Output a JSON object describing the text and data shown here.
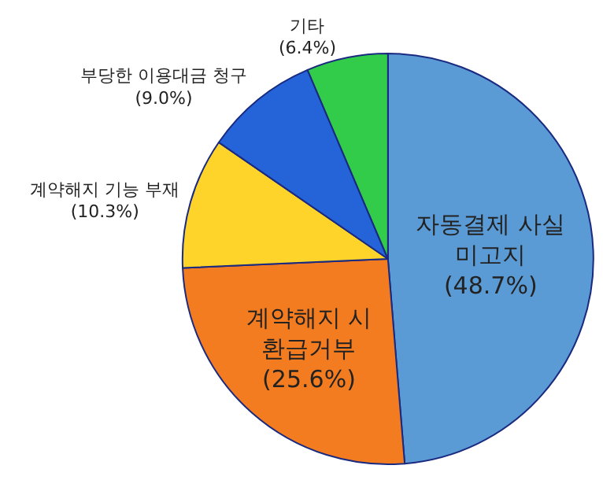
{
  "chart_data": {
    "type": "pie",
    "categories": [
      "자동결제 사실 미고지",
      "계약해지 시 환급거부",
      "계약해지 기능 부재",
      "부당한 이용대금 청구",
      "기타"
    ],
    "values": [
      48.7,
      25.6,
      10.3,
      9.0,
      6.4
    ],
    "value_labels": [
      "(48.7%)",
      "(25.6%)",
      "(10.3%)",
      "(9.0%)",
      "(6.4%)"
    ],
    "colors": [
      "#5b9bd5",
      "#f47c20",
      "#ffd42a",
      "#2563d9",
      "#33cc4a"
    ],
    "legend": false
  }
}
